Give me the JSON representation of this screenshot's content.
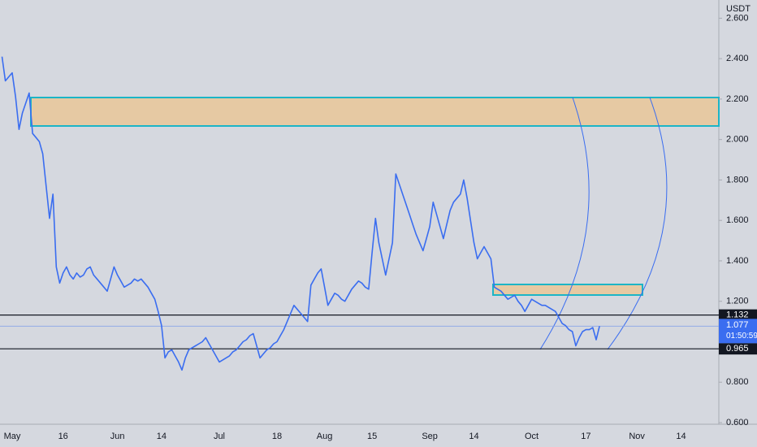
{
  "chart_data": {
    "type": "line",
    "currency": "USDT",
    "categories": [
      null,
      null,
      null,
      "May",
      null,
      null,
      null,
      null,
      null,
      null,
      null,
      null,
      null,
      null,
      null,
      null,
      null,
      null,
      "16",
      null,
      null,
      null,
      null,
      null,
      null,
      null,
      null,
      null,
      null,
      null,
      null,
      null,
      null,
      null,
      "Jun",
      null,
      null,
      null,
      null,
      null,
      null,
      null,
      null,
      null,
      null,
      null,
      null,
      "14",
      null,
      null,
      null,
      null,
      null,
      null,
      null,
      null,
      null,
      null,
      null,
      null,
      null,
      null,
      null,
      null,
      "Jul",
      null,
      null,
      null,
      null,
      null,
      null,
      null,
      null,
      null,
      null,
      null,
      null,
      null,
      null,
      null,
      null,
      "18",
      null,
      null,
      null,
      null,
      null,
      null,
      null,
      null,
      null,
      null,
      null,
      null,
      null,
      "Aug",
      null,
      null,
      null,
      null,
      null,
      null,
      null,
      null,
      null,
      null,
      null,
      null,
      null,
      "15",
      null,
      null,
      null,
      null,
      null,
      null,
      null,
      null,
      null,
      null,
      null,
      null,
      null,
      null,
      null,
      null,
      "Sep",
      null,
      null,
      null,
      null,
      null,
      null,
      null,
      null,
      null,
      null,
      null,
      null,
      "14",
      null,
      null,
      null,
      null,
      null,
      null,
      null,
      null,
      null,
      null,
      null,
      null,
      null,
      null,
      null,
      null,
      "Oct",
      null,
      null,
      null,
      null,
      null,
      null,
      null,
      null,
      null,
      null,
      null,
      null,
      null,
      null,
      null,
      "17",
      null,
      null,
      null,
      null,
      null,
      null,
      null,
      null,
      null,
      null,
      null,
      null,
      null,
      null,
      "Nov",
      null,
      null,
      null,
      null,
      null,
      null,
      null,
      null,
      null,
      null,
      null,
      null,
      "14",
      null,
      null,
      null,
      null,
      null,
      null
    ],
    "values": [
      2.41,
      2.29,
      2.31,
      2.33,
      2.21,
      2.05,
      2.13,
      2.18,
      2.23,
      2.03,
      2.01,
      1.99,
      1.93,
      1.77,
      1.61,
      1.73,
      1.37,
      1.29,
      1.34,
      1.37,
      1.33,
      1.31,
      1.34,
      1.32,
      1.33,
      1.36,
      1.37,
      1.33,
      1.31,
      1.29,
      1.27,
      1.25,
      1.31,
      1.37,
      1.33,
      1.3,
      1.27,
      1.28,
      1.29,
      1.31,
      1.3,
      1.31,
      1.29,
      1.27,
      1.24,
      1.21,
      1.15,
      1.08,
      0.92,
      0.95,
      0.96,
      0.93,
      0.9,
      0.86,
      0.92,
      0.96,
      0.97,
      0.98,
      0.99,
      1.0,
      1.02,
      0.99,
      0.96,
      0.93,
      0.9,
      0.91,
      0.92,
      0.93,
      0.95,
      0.96,
      0.98,
      1.0,
      1.01,
      1.03,
      1.04,
      0.98,
      0.92,
      0.94,
      0.96,
      0.97,
      0.99,
      1.0,
      1.03,
      1.06,
      1.1,
      1.14,
      1.18,
      1.16,
      1.14,
      1.12,
      1.1,
      1.28,
      1.31,
      1.34,
      1.36,
      1.27,
      1.18,
      1.21,
      1.24,
      1.23,
      1.21,
      1.2,
      1.23,
      1.26,
      1.28,
      1.3,
      1.29,
      1.27,
      1.26,
      1.44,
      1.61,
      1.49,
      1.41,
      1.33,
      1.41,
      1.49,
      1.83,
      1.78,
      1.73,
      1.68,
      1.63,
      1.58,
      1.53,
      1.49,
      1.45,
      1.51,
      1.57,
      1.69,
      1.63,
      1.57,
      1.51,
      1.58,
      1.65,
      1.69,
      1.71,
      1.73,
      1.8,
      1.71,
      1.6,
      1.49,
      1.41,
      1.44,
      1.47,
      1.44,
      1.41,
      1.27,
      1.26,
      1.25,
      1.23,
      1.21,
      1.22,
      1.23,
      1.2,
      1.18,
      1.15,
      1.18,
      1.21,
      1.2,
      1.19,
      1.18,
      1.18,
      1.17,
      1.16,
      1.15,
      1.12,
      1.09,
      1.08,
      1.06,
      1.05,
      0.98,
      1.02,
      1.05,
      1.06,
      1.06,
      1.07,
      1.01,
      1.077,
      null,
      null,
      null,
      null,
      null,
      null,
      null,
      null,
      null,
      null,
      null,
      null,
      null,
      null,
      null,
      null,
      null,
      null,
      null,
      null,
      null,
      null,
      null,
      null,
      null,
      null,
      null,
      null,
      null,
      null
    ],
    "color": "#3a6df0",
    "ylim": [
      0.6,
      2.69
    ],
    "yticks": [
      {
        "value": 0.6,
        "label": "0.600"
      },
      {
        "value": 0.8,
        "label": "0.800"
      },
      {
        "value": 1.2,
        "label": "1.200"
      },
      {
        "value": 1.4,
        "label": "1.400"
      },
      {
        "value": 1.6,
        "label": "1.600"
      },
      {
        "value": 1.8,
        "label": "1.800"
      },
      {
        "value": 2.0,
        "label": "2.000"
      },
      {
        "value": 2.2,
        "label": "2.200"
      },
      {
        "value": 2.4,
        "label": "2.400"
      },
      {
        "value": 2.6,
        "label": "2.600"
      }
    ],
    "levels": [
      1.132,
      0.965
    ],
    "last_price": 1.077,
    "countdown": "01:50:59"
  }
}
